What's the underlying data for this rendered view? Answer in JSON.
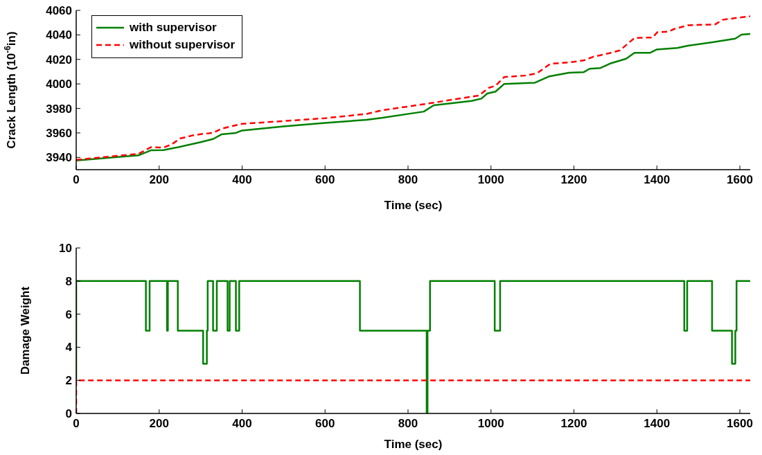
{
  "chart_data": [
    {
      "type": "line",
      "xlabel": "Time (sec)",
      "ylabel": "Crack Length (10$^{-6}$in)",
      "xlim": [
        0,
        1625
      ],
      "ylim": [
        3930,
        4060
      ],
      "xticks": [
        0,
        200,
        400,
        600,
        800,
        1000,
        1200,
        1400,
        1600
      ],
      "yticks": [
        3940,
        3960,
        3980,
        4000,
        4020,
        4040,
        4060
      ],
      "legend": "top left",
      "grid": false,
      "series": [
        {
          "name": "with supervisor",
          "color": "#008000",
          "line_style": "solid",
          "x": [
            0,
            150,
            180,
            210,
            250,
            300,
            330,
            350,
            385,
            400,
            500,
            600,
            700,
            736,
            838,
            862,
            953,
            977,
            991,
            1011,
            1032,
            1106,
            1141,
            1188,
            1223,
            1238,
            1264,
            1287,
            1308,
            1326,
            1346,
            1384,
            1399,
            1449,
            1475,
            1534,
            1589,
            1604,
            1625
          ],
          "values": [
            3937.5,
            3941.7,
            3945.8,
            3946,
            3948.6,
            3952.5,
            3955,
            3958.8,
            3960,
            3962,
            3965.3,
            3968.2,
            3970.7,
            3972.2,
            3977.4,
            3982.6,
            3986.1,
            3988,
            3992.2,
            3993.7,
            4000,
            4001,
            4006.2,
            4009.1,
            4009.5,
            4012.4,
            4013,
            4016.6,
            4018.7,
            4020.6,
            4025.4,
            4025.4,
            4028,
            4029.3,
            4031.2,
            4034,
            4037,
            4040.2,
            4040.8
          ]
        },
        {
          "name": "without supervisor",
          "color": "#ff0000",
          "line_style": "dashed",
          "x": [
            0,
            150,
            180,
            210,
            230,
            250,
            280,
            300,
            330,
            350,
            380,
            400,
            500,
            600,
            700,
            736,
            795,
            853,
            912,
            971,
            994,
            1011,
            1032,
            1082,
            1111,
            1143,
            1193,
            1223,
            1246,
            1284,
            1311,
            1346,
            1390,
            1401,
            1428,
            1440,
            1475,
            1540,
            1558,
            1593,
            1625
          ],
          "values": [
            3938,
            3942.9,
            3948.3,
            3948,
            3950.6,
            3955.4,
            3957.9,
            3959,
            3960,
            3963.4,
            3965.9,
            3967.4,
            3969.7,
            3972,
            3975.5,
            3978.4,
            3981.3,
            3984.2,
            3987.4,
            3990.5,
            3996.7,
            3998.5,
            4005.6,
            4006.8,
            4008.7,
            4016.4,
            4017.7,
            4019.1,
            4022.1,
            4025,
            4027.4,
            4037.5,
            4037.9,
            4042.2,
            4042.7,
            4044.6,
            4047.9,
            4048.5,
            4052.3,
            4053.9,
            4055.2
          ]
        }
      ]
    },
    {
      "type": "step",
      "xlabel": "Time (sec)",
      "ylabel": "Damage Weight",
      "xlim": [
        0,
        1625
      ],
      "ylim": [
        0,
        10
      ],
      "xticks": [
        0,
        200,
        400,
        600,
        800,
        1000,
        1200,
        1400,
        1600
      ],
      "yticks": [
        0,
        2,
        4,
        6,
        8,
        10
      ],
      "grid": false,
      "series": [
        {
          "color": "#008000",
          "line_style": "solid",
          "x": [
            0,
            0,
            168,
            177,
            219,
            221,
            245,
            306,
            315,
            317,
            330,
            339,
            365,
            370,
            385,
            393,
            684,
            845,
            847,
            853,
            1009,
            1022,
            1466,
            1473,
            1533,
            1581,
            1589,
            1592,
            1625
          ],
          "values": [
            2,
            8,
            5,
            8,
            5,
            8,
            5,
            3,
            5,
            8,
            5,
            8,
            5,
            8,
            5,
            8,
            5,
            0,
            5,
            8,
            5,
            8,
            5,
            8,
            5,
            3,
            5,
            8,
            8
          ]
        },
        {
          "color": "#ff0000",
          "line_style": "dashed",
          "x": [
            0,
            0,
            1625
          ],
          "values": [
            0,
            2,
            2
          ]
        }
      ]
    }
  ]
}
